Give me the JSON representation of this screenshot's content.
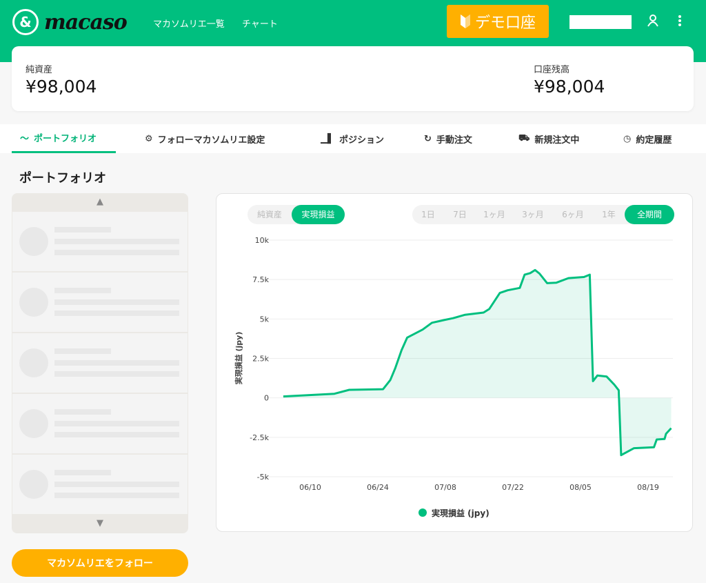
{
  "header": {
    "logo": "macaso",
    "nav": [
      "マカソムリエ一覧",
      "チャート"
    ],
    "demo_badge": "デモ口座",
    "icons": [
      "beginner-mark-icon",
      "user-icon",
      "more-vertical-icon"
    ]
  },
  "summary": {
    "net_assets_label": "純資産",
    "net_assets_value": "¥98,004",
    "balance_label": "口座残高",
    "balance_value": "¥98,004"
  },
  "tabs": [
    {
      "label": "ポートフォリオ",
      "icon": "trend-icon",
      "active": true
    },
    {
      "label": "フォローマカソムリエ設定",
      "icon": "gear-icon"
    },
    {
      "label": "ポジション",
      "icon": "bar-chart-icon"
    },
    {
      "label": "手動注文",
      "icon": "refresh-icon"
    },
    {
      "label": "新規注文中",
      "icon": "cart-icon"
    },
    {
      "label": "約定履歴",
      "icon": "clock-icon"
    }
  ],
  "section_title": "ポートフォリオ",
  "follow_button": "マカソムリエをフォロー",
  "chart_toggle": {
    "options": [
      "純資産",
      "実現損益"
    ],
    "selected": "実現損益"
  },
  "period_toggle": {
    "options": [
      "1日",
      "7日",
      "1ヶ月",
      "3ヶ月",
      "6ヶ月",
      "1年",
      "全期間"
    ],
    "selected": "全期間"
  },
  "colors": {
    "brand": "#00bf7f",
    "accent": "#ffb000"
  },
  "chart_data": {
    "type": "area",
    "ylabel": "実現損益 (jpy)",
    "ylim": [
      -5000,
      10000
    ],
    "yticks": [
      10000,
      7500,
      5000,
      2500,
      0,
      -2500,
      -5000
    ],
    "ytick_labels": [
      "10k",
      "7.5k",
      "5k",
      "2.5k",
      "0",
      "-2.5k",
      "-5k"
    ],
    "xticks": [
      "06/10",
      "06/24",
      "07/08",
      "07/22",
      "08/05",
      "08/19"
    ],
    "grid": true,
    "legend": "bottom",
    "series": [
      {
        "name": "実現損益 (jpy)",
        "color": "#00bf7f",
        "points": [
          [
            "06/04 10:00",
            90
          ],
          [
            "06/15 00:00",
            260
          ],
          [
            "06/18 02:00",
            510
          ],
          [
            "06/25 02:00",
            550
          ],
          [
            "06/26 14:00",
            1130
          ],
          [
            "06/27 14:00",
            1860
          ],
          [
            "06/28 22:00",
            3020
          ],
          [
            "06/30 02:00",
            3820
          ],
          [
            "07/03 07:00",
            4330
          ],
          [
            "07/05 05:00",
            4760
          ],
          [
            "07/07 17:00",
            4930
          ],
          [
            "07/09 14:00",
            5050
          ],
          [
            "07/12 02:00",
            5270
          ],
          [
            "07/15 22:00",
            5410
          ],
          [
            "07/17 02:00",
            5630
          ],
          [
            "07/19 07:00",
            6650
          ],
          [
            "07/20 22:00",
            6820
          ],
          [
            "07/23 10:00",
            6970
          ],
          [
            "07/24 10:00",
            7810
          ],
          [
            "07/25 14:00",
            7910
          ],
          [
            "07/26 14:00",
            8100
          ],
          [
            "07/27 12:00",
            7880
          ],
          [
            "07/29 02:00",
            7270
          ],
          [
            "07/31 00:00",
            7300
          ],
          [
            "08/02 12:00",
            7590
          ],
          [
            "08/05 17:00",
            7660
          ],
          [
            "08/06 22:00",
            7810
          ],
          [
            "08/07 14:00",
            1060
          ],
          [
            "08/08 12:00",
            1420
          ],
          [
            "08/10 10:00",
            1350
          ],
          [
            "08/12 00:00",
            840
          ],
          [
            "08/12 22:00",
            480
          ],
          [
            "08/13 10:00",
            -3630
          ],
          [
            "08/16 02:00",
            -3190
          ],
          [
            "08/20 05:00",
            -3130
          ],
          [
            "08/20 19:00",
            -2640
          ],
          [
            "08/22 10:00",
            -2610
          ],
          [
            "08/22 17:00",
            -2280
          ],
          [
            "08/23 19:00",
            -1920
          ]
        ]
      }
    ]
  }
}
